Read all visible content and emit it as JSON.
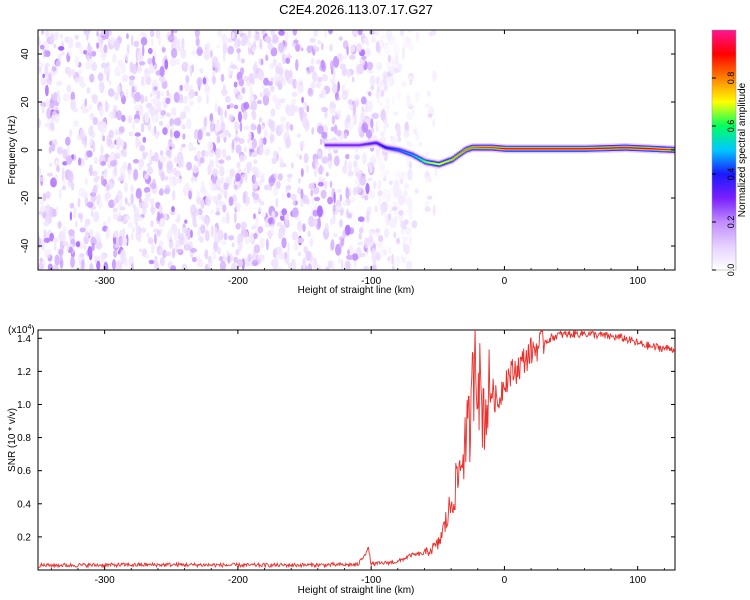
{
  "title": "C2E4.2026.113.07.17.G27",
  "chart_data": [
    {
      "type": "heatmap",
      "title": "C2E4.2026.113.07.17.G27",
      "xlabel": "Height of straight line (km)",
      "ylabel": "Frequency (Hz)",
      "xlim": [
        -350,
        128
      ],
      "ylim": [
        -50,
        50
      ],
      "xticks": [
        -300,
        -200,
        -100,
        0,
        100
      ],
      "yticks": [
        -40,
        -20,
        0,
        20,
        40
      ],
      "colorbar": {
        "label": "Normalized spectral amplitude",
        "range": [
          0,
          1
        ],
        "ticks": [
          "0.0",
          "0.2",
          "0.4",
          "0.6",
          "0.8"
        ],
        "colors": [
          "#ffffff",
          "#e6d0ff",
          "#c08cff",
          "#7a1fff",
          "#1a1aff",
          "#00c8ff",
          "#00ff60",
          "#ffff00",
          "#ff8000",
          "#ff0000",
          "#ff1493"
        ]
      },
      "noise_region_x": [
        -350,
        -70
      ],
      "signal_band": {
        "x": [
          -135,
          -110,
          -97,
          -90,
          -80,
          -70,
          -60,
          -50,
          -40,
          -30,
          -25,
          -18,
          -10,
          0,
          30,
          60,
          90,
          110,
          128
        ],
        "freq_hz": [
          2,
          2,
          3,
          1,
          0,
          -2,
          -5,
          -6,
          -4,
          0,
          1,
          1,
          1,
          0.5,
          0.5,
          0.5,
          1,
          0.5,
          0
        ],
        "amplitude": [
          0.3,
          0.3,
          0.35,
          0.4,
          0.45,
          0.5,
          0.65,
          0.7,
          0.75,
          0.8,
          0.8,
          0.85,
          0.85,
          0.9,
          0.9,
          0.9,
          0.95,
          0.9,
          0.85
        ]
      }
    },
    {
      "type": "line",
      "xlabel": "Height of straight line (km)",
      "ylabel": "SNR (10 * v/v)",
      "y_scale_label": "(x10",
      "y_scale_exp": "4",
      "y_scale_close": ")",
      "xlim": [
        -350,
        128
      ],
      "ylim": [
        0,
        14500
      ],
      "xticks": [
        -300,
        -200,
        -100,
        0,
        100
      ],
      "ytick_labels": [
        "0.2",
        "0.4",
        "0.6",
        "0.8",
        "1.0",
        "1.2",
        "1.4"
      ],
      "yticks": [
        2000,
        4000,
        6000,
        8000,
        10000,
        12000,
        14000
      ],
      "color": "#e8302c",
      "series": [
        {
          "name": "SNR",
          "x": [
            -350,
            -300,
            -250,
            -200,
            -150,
            -110,
            -102,
            -100,
            -80,
            -70,
            -60,
            -50,
            -45,
            -40,
            -35,
            -30,
            -25,
            -22,
            -18,
            -15,
            -10,
            -5,
            0,
            10,
            20,
            30,
            40,
            50,
            60,
            70,
            80,
            90,
            100,
            110,
            120,
            128
          ],
          "y": [
            280,
            300,
            320,
            290,
            300,
            320,
            1300,
            350,
            500,
            900,
            1000,
            1500,
            2600,
            4000,
            5500,
            7500,
            9000,
            14200,
            10500,
            9500,
            11000,
            10000,
            11500,
            12200,
            13200,
            13800,
            14200,
            14250,
            14300,
            14200,
            14100,
            14000,
            13700,
            13500,
            13400,
            13350
          ]
        }
      ]
    }
  ]
}
